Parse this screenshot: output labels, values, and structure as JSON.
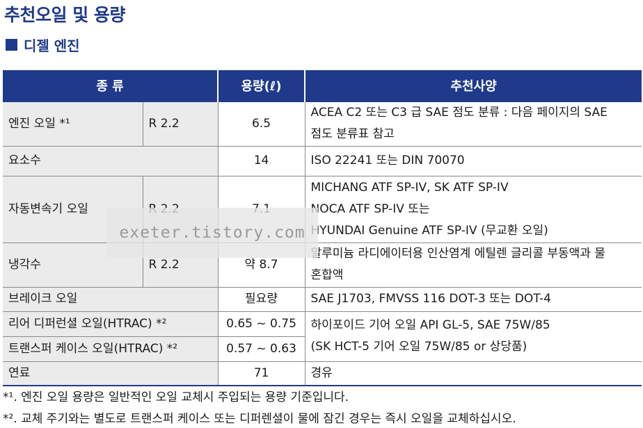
{
  "title": "추천오일 및 용량",
  "section": "디젤 엔진",
  "table": {
    "headers": [
      "종 류",
      "용량(ℓ)",
      "추천사양"
    ],
    "rows": [
      {
        "name": "엔진 오일 *¹",
        "model": "R 2.2",
        "capacity": "6.5",
        "spec_lines": [
          "ACEA C2 또는 C3 급 SAE 점도 분류 : 다음 페이지의 SAE",
          "점도 분류표 참고"
        ]
      },
      {
        "name": "요소수",
        "model": "",
        "capacity": "14",
        "spec_lines": [
          "ISO 22241 또는 DIN 70070"
        ]
      },
      {
        "name": "자동변속기 오일",
        "model": "R 2.2",
        "capacity": "7.1",
        "spec_lines": [
          "MICHANG ATF SP-IV, SK ATF SP-IV",
          "NOCA ATF SP-IV 또는",
          "HYUNDAI Genuine ATF SP-IV (무교환 오일)"
        ]
      },
      {
        "name": "냉각수",
        "model": "R 2.2",
        "capacity": "약 8.7",
        "spec_lines": [
          "알루미늄 라디에이터용 인산염계 에틸렌 글리콜 부동액과 물",
          "혼합액"
        ]
      },
      {
        "name": "브레이크 오일",
        "model": "",
        "capacity": "필요량",
        "spec_lines": [
          "SAE J1703, FMVSS 116 DOT-3 또는 DOT-4"
        ]
      },
      {
        "name": "리어 디퍼런셜 오일(HTRAC) *²",
        "model": "",
        "capacity": "0.65 ~ 0.75",
        "spec_lines": [
          "하이포이드 기어 오일 API GL-5, SAE 75W/85",
          "(SK HCT-5 기어 오일 75W/85 or 상당품)"
        ]
      },
      {
        "name": "트랜스퍼 케이스 오일(HTRAC) *²",
        "model": "",
        "capacity": "0.57 ~ 0.63",
        "spec_lines": []
      },
      {
        "name": "연료",
        "model": "",
        "capacity": "71",
        "spec_lines": [
          "경유"
        ]
      }
    ]
  },
  "notes": [
    "*¹. 엔진 오일 용량은 일반적인 오일 교체시 주입되는 용량 기준입니다.",
    "*². 교체 주기와는 별도로 트랜스퍼 케이스 또는 디퍼렌셜이 물에 잠긴 경우는 즉시 오일을 교체하십시오."
  ],
  "watermark": "exeter.tistory.com",
  "colors": {
    "accent": "#1f3a8a",
    "row_label_bg": "#ebebeb"
  }
}
